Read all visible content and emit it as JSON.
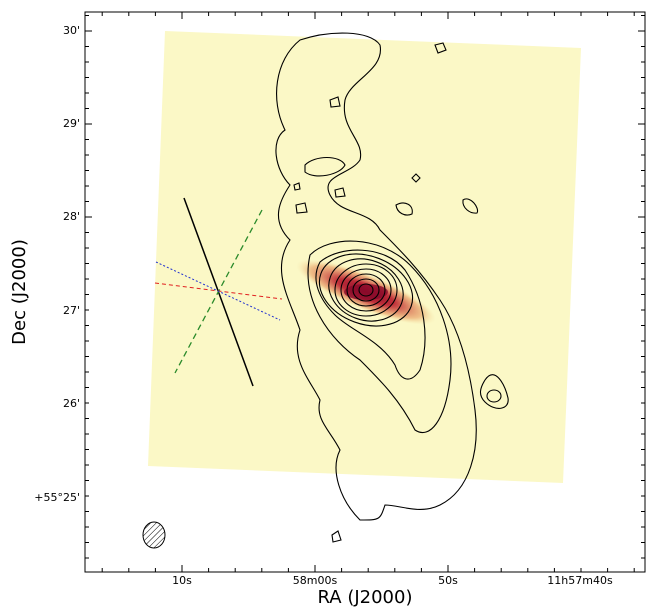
{
  "axes": {
    "x_label": "RA (J2000)",
    "y_label": "Dec (J2000)",
    "x_tick_labels": [
      "10s",
      "58m00s",
      "50s",
      "11h57m40s"
    ],
    "y_tick_labels": [
      "30'",
      "29'",
      "28'",
      "27'",
      "26'",
      "+55°25'"
    ]
  }
}
